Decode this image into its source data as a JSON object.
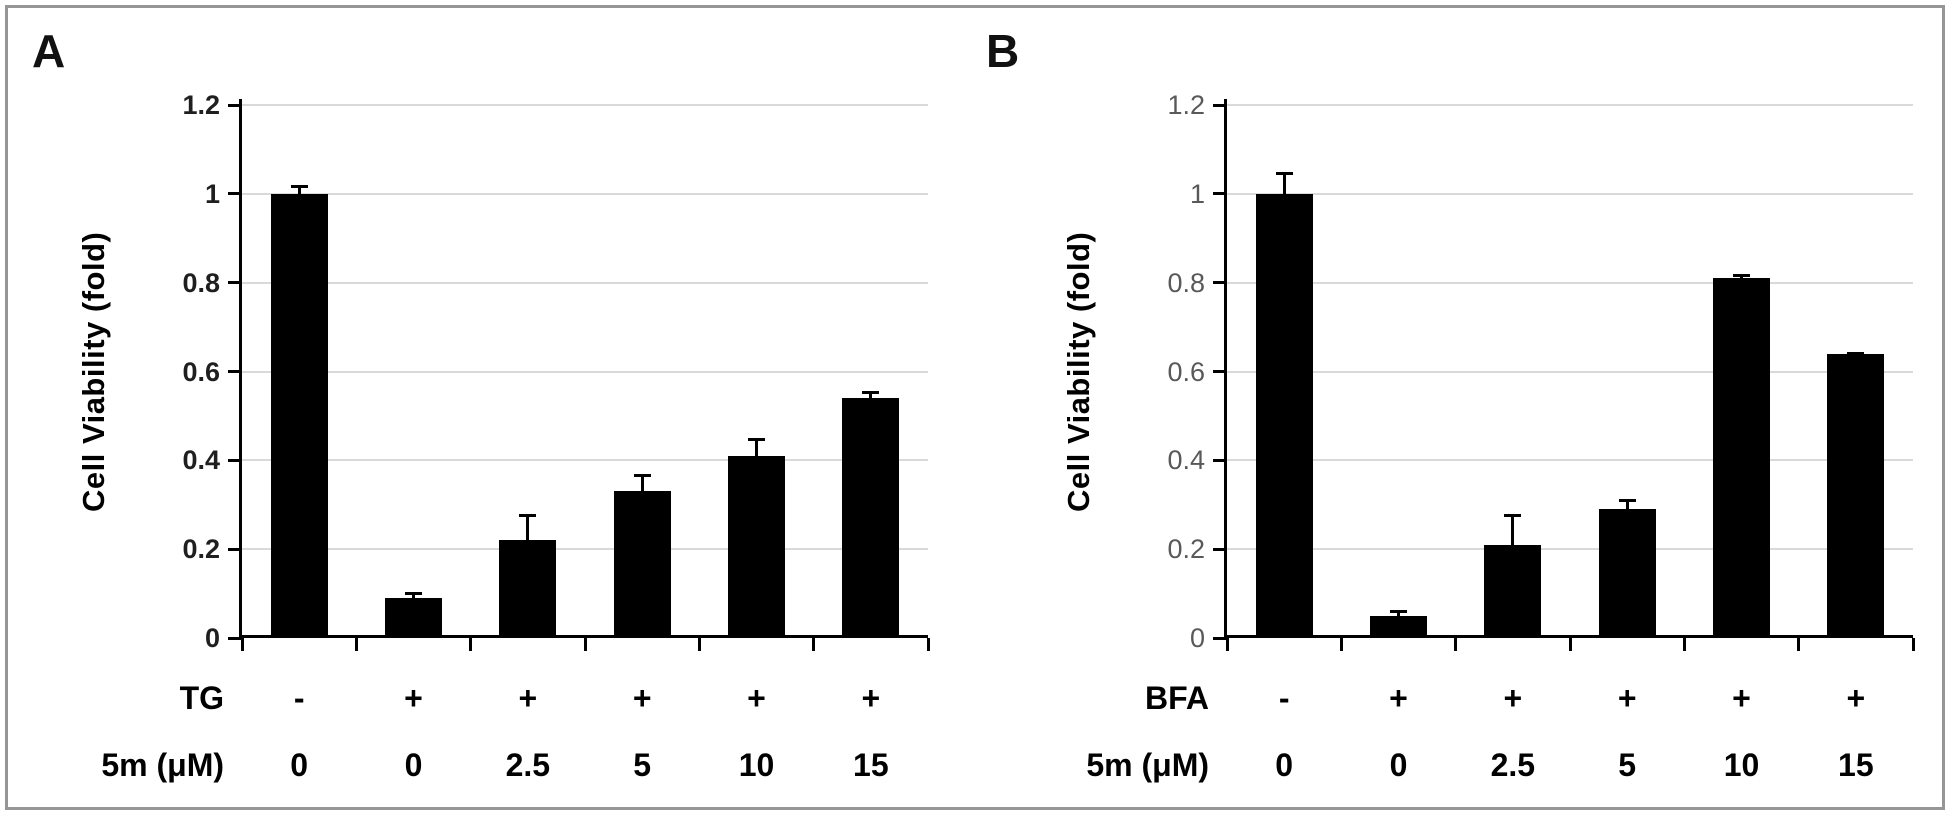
{
  "figure_type": "two-panel bar chart figure",
  "chart_data": [
    {
      "type": "bar",
      "panel": "A",
      "title": "",
      "xlabel": "",
      "ylabel": "Cell Viability (fold)",
      "ylim": [
        0,
        1.2
      ],
      "ytick_values": [
        0,
        0.2,
        0.4,
        0.6,
        0.8,
        1,
        1.2
      ],
      "ytick_labels": [
        "0",
        "0.2",
        "0.4",
        "0.6",
        "0.8",
        "1",
        "1.2"
      ],
      "categories": [
        "0",
        "0",
        "2.5",
        "5",
        "10",
        "15"
      ],
      "values": [
        1.0,
        0.09,
        0.22,
        0.33,
        0.41,
        0.54
      ],
      "errors": [
        0.02,
        0.013,
        0.06,
        0.04,
        0.04,
        0.015
      ],
      "error_direction": "up",
      "rows": [
        {
          "header": "TG",
          "cells": [
            "-",
            "+",
            "+",
            "+",
            "+",
            "+"
          ]
        },
        {
          "header": "5m (μM)",
          "cells": [
            "0",
            "0",
            "2.5",
            "5",
            "10",
            "15"
          ]
        }
      ],
      "bar_color": "#000000",
      "grid": true,
      "grid_color": "#d9d9d9",
      "tick_label_color": "#1f1f1f",
      "legend_position": "none"
    },
    {
      "type": "bar",
      "panel": "B",
      "title": "",
      "xlabel": "",
      "ylabel": "Cell Viability (fold)",
      "ylim": [
        0,
        1.2
      ],
      "ytick_values": [
        0,
        0.2,
        0.4,
        0.6,
        0.8,
        1,
        1.2
      ],
      "ytick_labels": [
        "0",
        "0.2",
        "0.4",
        "0.6",
        "0.8",
        "1",
        "1.2"
      ],
      "categories": [
        "0",
        "0",
        "2.5",
        "5",
        "10",
        "15"
      ],
      "values": [
        1.0,
        0.05,
        0.21,
        0.29,
        0.81,
        0.64
      ],
      "errors": [
        0.05,
        0.012,
        0.07,
        0.022,
        0.01,
        0.005
      ],
      "error_direction": "up",
      "rows": [
        {
          "header": "BFA",
          "cells": [
            "-",
            "+",
            "+",
            "+",
            "+",
            "+"
          ]
        },
        {
          "header": "5m (μM)",
          "cells": [
            "0",
            "0",
            "2.5",
            "5",
            "10",
            "15"
          ]
        }
      ],
      "bar_color": "#000000",
      "grid": true,
      "grid_color": "#d9d9d9",
      "tick_label_color": "#595959",
      "legend_position": "none"
    }
  ]
}
